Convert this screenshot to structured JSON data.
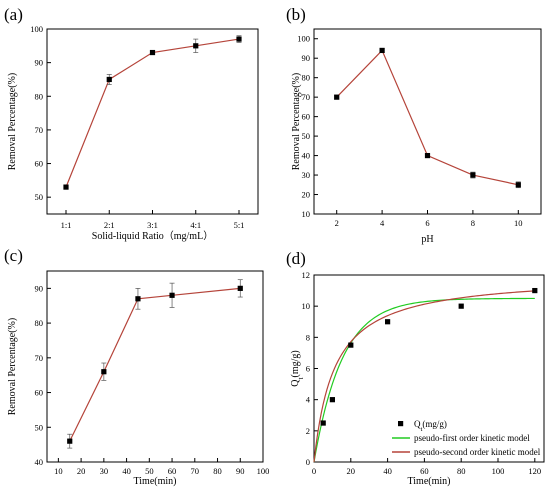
{
  "chart_data": [
    {
      "panel_label": "(a)",
      "type": "line",
      "categories": [
        "1:1",
        "2:1",
        "3:1",
        "4:1",
        "5:1"
      ],
      "values": [
        53,
        85,
        93,
        95,
        97
      ],
      "errors": [
        0.5,
        1.5,
        0.5,
        2.0,
        1.0
      ],
      "xlabel": "Solid-liquid Ratio（mg/mL）",
      "ylabel": "Removal Percentage(%)",
      "ylim": [
        45,
        100
      ],
      "yticks": [
        50,
        60,
        70,
        80,
        90,
        100
      ],
      "colors": {
        "line": "#b5443a",
        "marker": "#000000"
      }
    },
    {
      "panel_label": "(b)",
      "type": "line",
      "x": [
        2,
        4,
        6,
        8,
        10
      ],
      "values": [
        70,
        94,
        40,
        30,
        25
      ],
      "errors": [
        1.0,
        1.0,
        1.0,
        1.5,
        1.5
      ],
      "xlabel": "pH",
      "ylabel": "Removal Percentage(%)",
      "xlim": [
        1,
        11
      ],
      "xticks": [
        2,
        4,
        6,
        8,
        10
      ],
      "ylim": [
        10,
        105
      ],
      "yticks": [
        10,
        20,
        30,
        40,
        50,
        60,
        70,
        80,
        90,
        100
      ],
      "colors": {
        "line": "#b5443a",
        "marker": "#000000"
      }
    },
    {
      "panel_label": "(c)",
      "type": "line",
      "x": [
        15,
        30,
        45,
        60,
        90
      ],
      "values": [
        46,
        66,
        87,
        88,
        90
      ],
      "errors": [
        2.0,
        2.5,
        3.0,
        3.5,
        2.5
      ],
      "xlabel": "Time(min)",
      "ylabel": "Removal Percentage(%)",
      "xlim": [
        5,
        100
      ],
      "xticks": [
        10,
        20,
        30,
        40,
        50,
        60,
        70,
        80,
        90,
        100
      ],
      "ylim": [
        40,
        95
      ],
      "yticks": [
        40,
        50,
        60,
        70,
        80,
        90
      ],
      "colors": {
        "line": "#b5443a",
        "marker": "#000000"
      }
    },
    {
      "panel_label": "(d)",
      "type": "scatter",
      "x": [
        5,
        10,
        20,
        40,
        80,
        120
      ],
      "values": [
        2.5,
        4.0,
        7.5,
        9.0,
        10.0,
        11.0
      ],
      "series": [
        {
          "name": "Q_t(mg/g)",
          "kind": "points",
          "color": "#000000"
        },
        {
          "name": "pseudo-first order kinetic model",
          "kind": "curve",
          "model": "pfo",
          "qe": 10.5,
          "k": 0.065,
          "color": "#22cc22"
        },
        {
          "name": "pseudo-second order kinetic model",
          "kind": "curve",
          "model": "pso",
          "qe": 12.0,
          "k": 0.0075,
          "color": "#b5443a"
        }
      ],
      "legend_placement": "bottom-right",
      "xlabel": "Time(min)",
      "ylabel": "Q_t(mg/g)",
      "xlim": [
        0,
        125
      ],
      "xticks": [
        0,
        20,
        40,
        60,
        80,
        100,
        120
      ],
      "ylim": [
        0,
        12
      ],
      "yticks": [
        0,
        2,
        4,
        6,
        8,
        10,
        12
      ]
    }
  ]
}
